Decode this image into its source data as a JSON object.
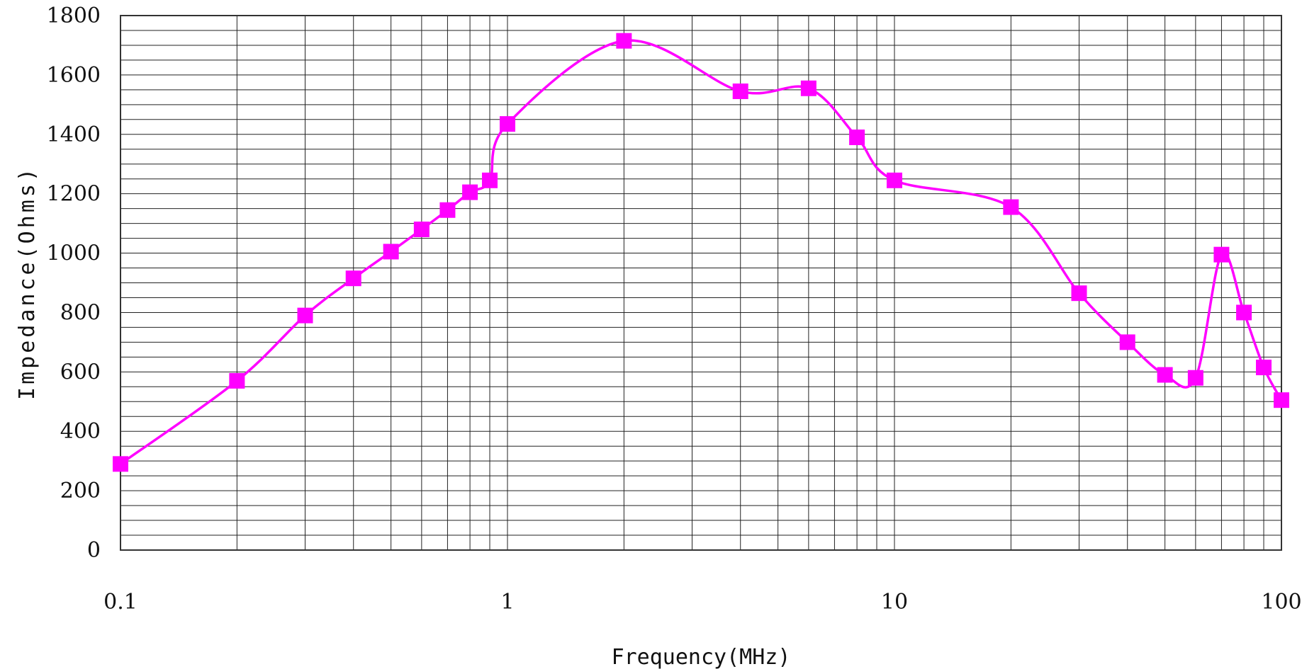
{
  "chart_data": {
    "type": "line",
    "title": "",
    "xlabel": "Frequency(MHz)",
    "ylabel": "Impedance(Ohms)",
    "x_scale": "log",
    "xlim": [
      0.1,
      100
    ],
    "ylim": [
      0,
      1800
    ],
    "x_ticks": [
      0.1,
      1,
      10,
      100
    ],
    "x_tick_labels": [
      "0.1",
      "1",
      "10",
      "100"
    ],
    "y_ticks": [
      0,
      200,
      400,
      600,
      800,
      1000,
      1200,
      1400,
      1600,
      1800
    ],
    "y_tick_labels": [
      "0",
      "200",
      "400",
      "600",
      "800",
      "1000",
      "1200",
      "1400",
      "1600",
      "1800"
    ],
    "grid": true,
    "legend": "none",
    "series": [
      {
        "color": "#ff00ff",
        "marker": "square",
        "x": [
          0.1,
          0.2,
          0.3,
          0.4,
          0.5,
          0.6,
          0.7,
          0.8,
          0.9,
          1,
          2,
          4,
          6,
          8,
          10,
          20,
          30,
          40,
          50,
          60,
          70,
          80,
          90,
          100
        ],
        "y": [
          290,
          570,
          790,
          915,
          1005,
          1080,
          1145,
          1205,
          1245,
          1435,
          1715,
          1545,
          1555,
          1390,
          1245,
          1155,
          865,
          700,
          590,
          580,
          995,
          800,
          615,
          505
        ]
      }
    ]
  }
}
